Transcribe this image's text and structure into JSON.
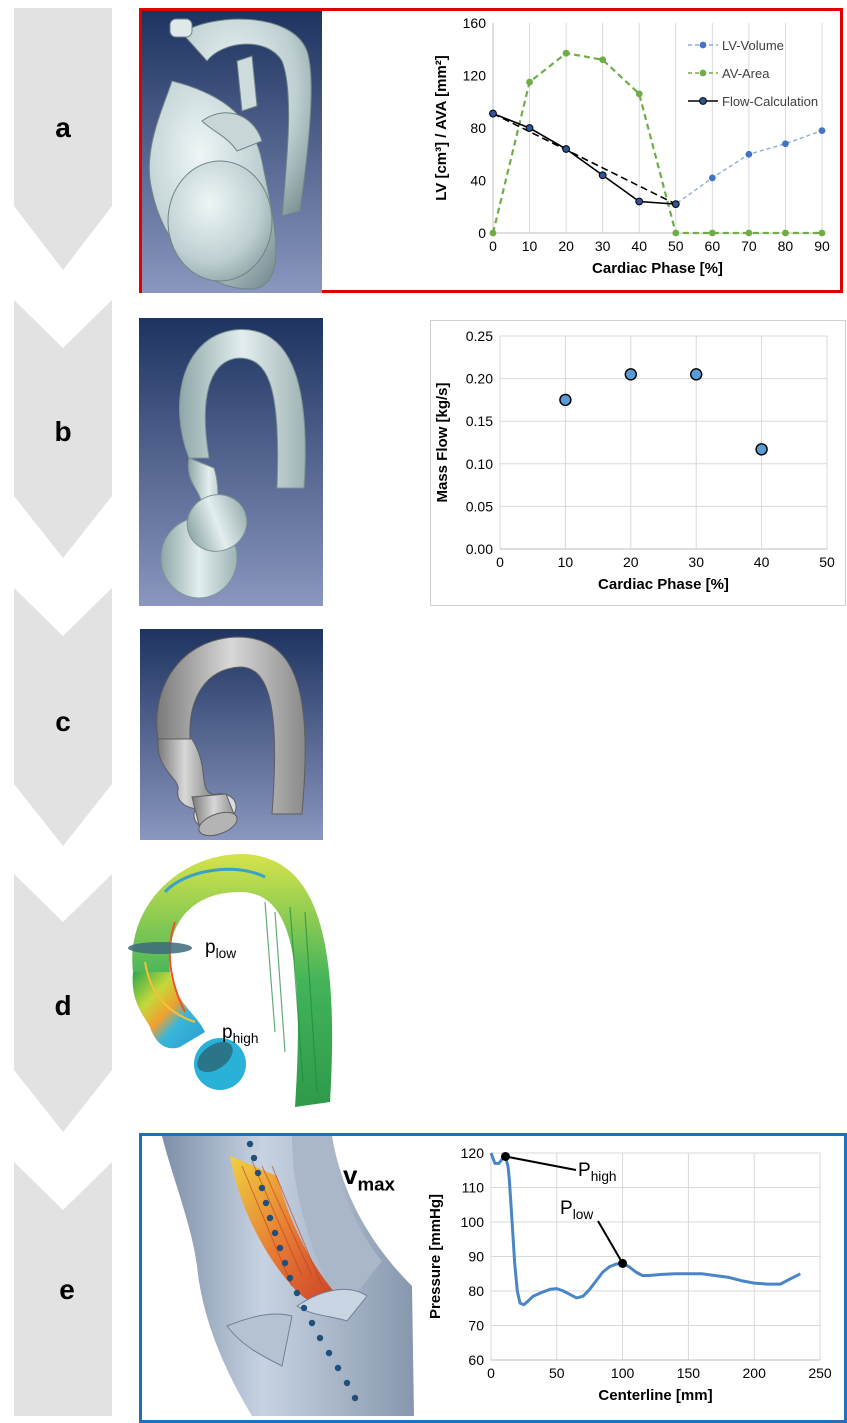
{
  "steps": [
    {
      "letter": "a"
    },
    {
      "letter": "b"
    },
    {
      "letter": "c"
    },
    {
      "letter": "d"
    },
    {
      "letter": "e"
    }
  ],
  "annotations": {
    "p_low": {
      "base": "p",
      "sub": "low"
    },
    "p_high": {
      "base": "p",
      "sub": "high"
    },
    "v_max": {
      "base": "v",
      "sub": "max"
    },
    "P_high": {
      "base": "P",
      "sub": "high"
    },
    "P_low": {
      "base": "P",
      "sub": "low"
    }
  },
  "colors": {
    "frame_a": "#e00000",
    "frame_e": "#1f6fbf",
    "lv_volume": "#4472c4",
    "av_area": "#70ad47",
    "flow_calc": "#000000",
    "mass_flow": "#5b9bd5",
    "pressure": "#4a86c5"
  },
  "chart_data": [
    {
      "id": "a",
      "type": "line",
      "xlabel": "Cardiac Phase [%]",
      "ylabel": "LV [cm³] / AVA [mm²]",
      "xlim": [
        0,
        90
      ],
      "ylim": [
        0,
        160
      ],
      "xticks": [
        0,
        10,
        20,
        30,
        40,
        50,
        60,
        70,
        80,
        90
      ],
      "yticks": [
        0,
        40,
        80,
        120,
        160
      ],
      "grid": "vertical",
      "legend": "top-right",
      "series": [
        {
          "name": "LV-Volume",
          "style": "dashed",
          "color": "#8eaadb",
          "marker": "#4472c4",
          "x": [
            0,
            10,
            20,
            30,
            40,
            50,
            60,
            70,
            80,
            90
          ],
          "y": [
            91,
            80,
            64,
            44,
            24,
            22,
            42,
            60,
            68,
            78
          ]
        },
        {
          "name": "AV-Area",
          "style": "dashed",
          "color": "#70ad47",
          "marker": "#70ad47",
          "x": [
            0,
            10,
            20,
            30,
            40,
            50,
            60,
            70,
            80,
            90
          ],
          "y": [
            0,
            115,
            137,
            132,
            106,
            0,
            0,
            0,
            0,
            0
          ]
        },
        {
          "name": "Flow-Calculation",
          "style": "solid-dashed",
          "color": "#000000",
          "marker": "#2f5597",
          "x": [
            0,
            10,
            20,
            30,
            40,
            50
          ],
          "y": [
            91,
            80,
            64,
            44,
            24,
            22
          ]
        }
      ]
    },
    {
      "id": "b",
      "type": "scatter",
      "xlabel": "Cardiac Phase [%]",
      "ylabel": "Mass Flow [kg/s]",
      "xlim": [
        0,
        50
      ],
      "ylim": [
        0,
        0.25
      ],
      "xticks": [
        0,
        10,
        20,
        30,
        40,
        50
      ],
      "yticks": [
        "0.00",
        "0.05",
        "0.10",
        "0.15",
        "0.20",
        "0.25"
      ],
      "grid": "both",
      "series": [
        {
          "x": [
            10,
            20,
            30,
            40
          ],
          "y": [
            0.175,
            0.205,
            0.205,
            0.117
          ]
        }
      ]
    },
    {
      "id": "e",
      "type": "line",
      "xlabel": "Centerline [mm]",
      "ylabel": "Pressure [mmHg]",
      "xlim": [
        0,
        250
      ],
      "ylim": [
        60,
        120
      ],
      "xticks": [
        0,
        50,
        100,
        150,
        200,
        250
      ],
      "yticks": [
        60,
        70,
        80,
        90,
        100,
        110,
        120
      ],
      "grid": "both",
      "series": [
        {
          "x": [
            0,
            3,
            6,
            9,
            11,
            13,
            14,
            16,
            18,
            20,
            22,
            25,
            28,
            32,
            38,
            45,
            50,
            55,
            60,
            65,
            70,
            75,
            80,
            85,
            90,
            95,
            100,
            105,
            110,
            115,
            120,
            130,
            140,
            150,
            160,
            170,
            180,
            190,
            200,
            210,
            220,
            225,
            230,
            235
          ],
          "y": [
            120,
            117,
            117,
            118.5,
            119,
            116,
            112,
            100,
            88,
            80,
            76.5,
            76,
            77,
            78.5,
            79.5,
            80.5,
            80.7,
            80,
            79,
            78,
            78.5,
            80.5,
            83,
            85.5,
            87,
            87.8,
            88,
            87,
            85.5,
            84.5,
            84.5,
            84.8,
            85,
            85,
            85,
            84.5,
            84,
            83,
            82.3,
            82,
            82,
            83,
            84,
            85
          ]
        }
      ],
      "markers": [
        {
          "x": 11,
          "y": 119
        },
        {
          "x": 100,
          "y": 88
        }
      ]
    }
  ]
}
